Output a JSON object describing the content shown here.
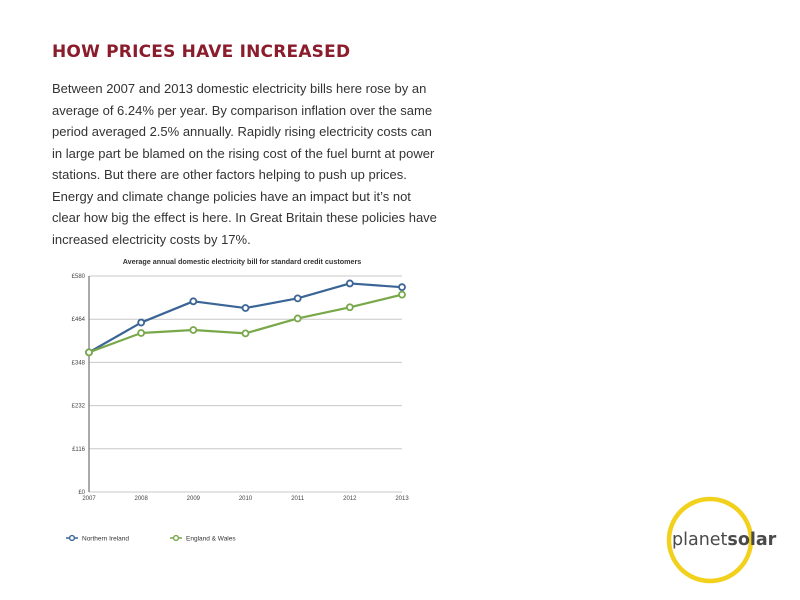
{
  "heading": "HOW PRICES HAVE INCREASED",
  "paragraph": "Between 2007 and 2013 domestic electricity bills here rose by an average of 6.24% per year. By comparison inflation over the same period averaged 2.5% annually. Rapidly rising electricity costs can in large part be blamed on the rising cost of the fuel burnt at power stations. But there are other factors helping to push up prices. Energy and climate change policies have an impact but it’s not clear how big the effect is here. In Great Britain these policies have increased electricity costs by 17%.",
  "chart_data": {
    "type": "line",
    "title": "Average annual domestic electricity bill for standard credit customers",
    "x": [
      "2007",
      "2008",
      "2009",
      "2010",
      "2011",
      "2012",
      "2013"
    ],
    "yticks": [
      0,
      116,
      232,
      348,
      464,
      580
    ],
    "ytick_labels": [
      "£0",
      "£116",
      "£232",
      "£348",
      "£464",
      "£580"
    ],
    "ylim": [
      0,
      580
    ],
    "grid": true,
    "legend_position": "bottom-left",
    "series": [
      {
        "name": "Northern Ireland",
        "color": "#3a6596",
        "values": [
          375,
          455,
          512,
          494,
          520,
          560,
          550
        ]
      },
      {
        "name": "England & Wales",
        "color": "#78a84a",
        "values": [
          375,
          427,
          435,
          426,
          466,
          496,
          530
        ]
      }
    ]
  },
  "logo": {
    "part1": "planet",
    "part2": "solar",
    "ring_color": "#f2d11c"
  }
}
